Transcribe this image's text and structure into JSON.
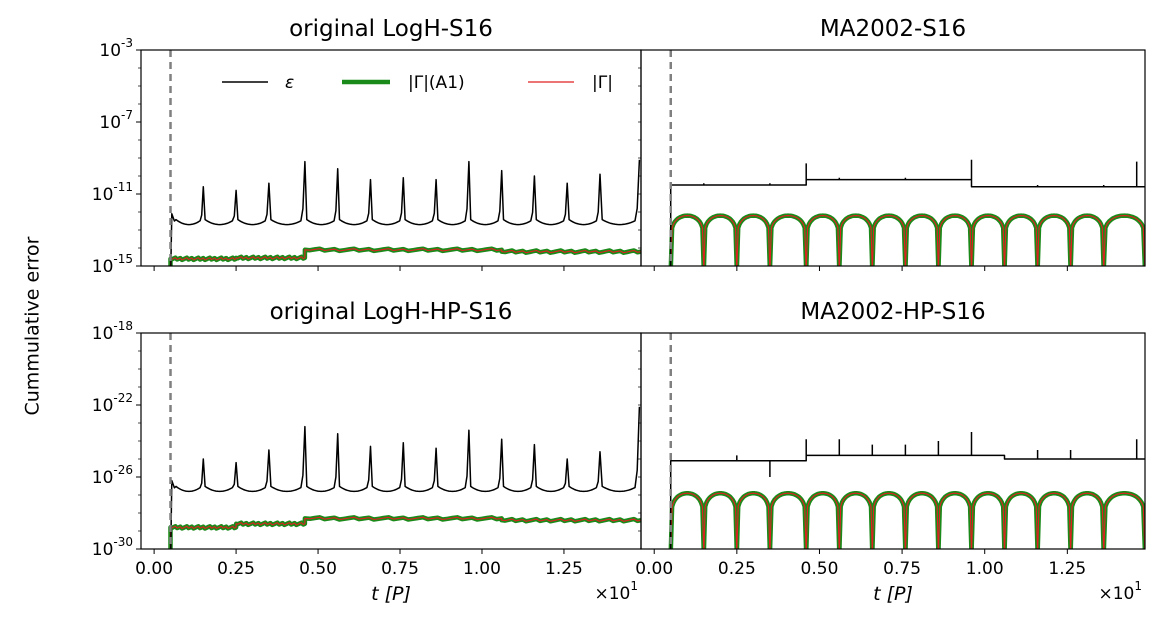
{
  "figure": {
    "ylabel": "Cummulative error",
    "legend": [
      {
        "label": "ε",
        "color": "#000000",
        "width": "thin"
      },
      {
        "label": "|Γ|(A1)",
        "color": "#1a8a1a",
        "width": "thick"
      },
      {
        "label": "|Γ|",
        "color": "#e02020",
        "width": "thin"
      }
    ],
    "legend_position": "top-left panel, upper area"
  },
  "chart_data": [
    {
      "type": "line",
      "title": "original LogH-S16",
      "position": "top-left",
      "xlabel": "",
      "ylabel": "Cummulative error",
      "xlim": [
        -0.04,
        1.485
      ],
      "ylim_log10": [
        -15,
        -3
      ],
      "yticks": [
        {
          "exp": -3,
          "label": "-3"
        },
        {
          "exp": -7,
          "label": "-7"
        },
        {
          "exp": -11,
          "label": "-11"
        },
        {
          "exp": -15,
          "label": "-15"
        }
      ],
      "xticks": [],
      "vline_x": 0.05,
      "series": [
        {
          "name": "ε",
          "style": "eps",
          "base": -12.7,
          "peak_times": [
            0.15,
            0.25,
            0.35,
            0.46,
            0.56,
            0.66,
            0.76,
            0.86,
            0.96,
            1.06,
            1.16,
            1.26,
            1.36,
            1.48
          ],
          "peak_values": [
            -10.6,
            -10.8,
            -10.4,
            -9.2,
            -9.6,
            -10.2,
            -10.1,
            -10.2,
            -9.2,
            -9.7,
            -10.0,
            -10.4,
            -9.9,
            -9.1
          ]
        },
        {
          "name": "|Γ|(A1)",
          "style": "flat",
          "segments": [
            [
              0.05,
              0.25,
              -14.6
            ],
            [
              0.25,
              0.46,
              -14.55
            ],
            [
              0.46,
              1.06,
              -14.1
            ],
            [
              1.06,
              1.485,
              -14.2
            ]
          ]
        },
        {
          "name": "|Γ|",
          "style": "flat",
          "segments": [
            [
              0.05,
              0.25,
              -14.6
            ],
            [
              0.25,
              0.46,
              -14.55
            ],
            [
              0.46,
              1.06,
              -14.1
            ],
            [
              1.06,
              1.485,
              -14.2
            ]
          ]
        }
      ]
    },
    {
      "type": "line",
      "title": "MA2002-S16",
      "position": "top-right",
      "xlabel": "",
      "xlim": [
        -0.04,
        1.485
      ],
      "ylim_log10": [
        -15,
        -3
      ],
      "yticks": [],
      "xticks": [],
      "vline_x": 0.05,
      "series": [
        {
          "name": "ε",
          "style": "step",
          "levels": [
            [
              0.05,
              0.46,
              -10.5
            ],
            [
              0.46,
              0.96,
              -10.2
            ],
            [
              0.96,
              1.485,
              -10.6
            ]
          ],
          "spike_times": [
            0.15,
            0.35,
            0.46,
            0.56,
            0.76,
            0.96,
            1.16,
            1.36,
            1.46
          ],
          "spike_values": [
            -10.4,
            -10.4,
            -9.3,
            -10.1,
            -10.1,
            -9.1,
            -10.5,
            -10.5,
            -9.2
          ]
        },
        {
          "name": "|Γ|(A1)",
          "style": "arches",
          "arch_times": [
            0.05,
            0.15,
            0.25,
            0.35,
            0.46,
            0.56,
            0.66,
            0.76,
            0.86,
            0.96,
            1.06,
            1.16,
            1.26,
            1.36,
            1.485
          ],
          "top": -12.2
        },
        {
          "name": "|Γ|",
          "style": "arches",
          "arch_times": [
            0.05,
            0.15,
            0.25,
            0.35,
            0.46,
            0.56,
            0.66,
            0.76,
            0.86,
            0.96,
            1.06,
            1.16,
            1.26,
            1.36,
            1.485
          ],
          "top": -12.2
        }
      ]
    },
    {
      "type": "line",
      "title": "original LogH-HP-S16",
      "position": "bottom-left",
      "xlabel": "t [P]",
      "xlim": [
        -0.04,
        1.485
      ],
      "ylim_log10": [
        -30,
        -18
      ],
      "yticks": [
        {
          "exp": -18,
          "label": "-18"
        },
        {
          "exp": -22,
          "label": "-22"
        },
        {
          "exp": -26,
          "label": "-26"
        },
        {
          "exp": -30,
          "label": "-30"
        }
      ],
      "xticks": [
        "0.00",
        "0.25",
        "0.50",
        "0.75",
        "1.00",
        "1.25"
      ],
      "xtick_values": [
        0.0,
        0.25,
        0.5,
        0.75,
        1.0,
        1.25
      ],
      "offset_text": "×10",
      "offset_exp": "1",
      "vline_x": 0.05,
      "series": [
        {
          "name": "ε",
          "style": "eps",
          "base": -26.8,
          "peak_times": [
            0.15,
            0.25,
            0.35,
            0.46,
            0.56,
            0.66,
            0.76,
            0.86,
            0.96,
            1.06,
            1.16,
            1.26,
            1.36,
            1.48
          ],
          "peak_values": [
            -25.0,
            -25.2,
            -24.5,
            -23.2,
            -23.6,
            -24.3,
            -24.1,
            -24.4,
            -23.4,
            -23.9,
            -24.2,
            -25.0,
            -24.6,
            -22.1
          ]
        },
        {
          "name": "|Γ|(A1)",
          "style": "flat",
          "segments": [
            [
              0.05,
              0.25,
              -28.8
            ],
            [
              0.25,
              0.46,
              -28.6
            ],
            [
              0.46,
              1.06,
              -28.3
            ],
            [
              1.06,
              1.485,
              -28.4
            ]
          ]
        },
        {
          "name": "|Γ|",
          "style": "flat",
          "segments": [
            [
              0.05,
              0.25,
              -28.8
            ],
            [
              0.25,
              0.46,
              -28.6
            ],
            [
              0.46,
              1.06,
              -28.3
            ],
            [
              1.06,
              1.485,
              -28.4
            ]
          ]
        }
      ]
    },
    {
      "type": "line",
      "title": "MA2002-HP-S16",
      "position": "bottom-right",
      "xlabel": "t [P]",
      "xlim": [
        -0.04,
        1.485
      ],
      "ylim_log10": [
        -30,
        -18
      ],
      "yticks": [],
      "xticks": [
        "0.00",
        "0.25",
        "0.50",
        "0.75",
        "1.00",
        "1.25"
      ],
      "xtick_values": [
        0.0,
        0.25,
        0.5,
        0.75,
        1.0,
        1.25
      ],
      "offset_text": "×10",
      "offset_exp": "1",
      "vline_x": 0.05,
      "series": [
        {
          "name": "ε",
          "style": "step",
          "levels": [
            [
              0.05,
              0.46,
              -25.1
            ],
            [
              0.46,
              1.06,
              -24.8
            ],
            [
              1.06,
              1.485,
              -25.0
            ]
          ],
          "spike_times": [
            0.25,
            0.35,
            0.46,
            0.56,
            0.66,
            0.76,
            0.86,
            0.96,
            1.16,
            1.26,
            1.46
          ],
          "spike_values": [
            -24.8,
            -26.0,
            -23.9,
            -23.9,
            -24.2,
            -24.2,
            -24.0,
            -23.5,
            -24.5,
            -24.5,
            -23.9
          ]
        },
        {
          "name": "|Γ|(A1)",
          "style": "arches",
          "arch_times": [
            0.05,
            0.15,
            0.25,
            0.35,
            0.46,
            0.56,
            0.66,
            0.76,
            0.86,
            0.96,
            1.06,
            1.16,
            1.26,
            1.36,
            1.485
          ],
          "top": -26.9
        },
        {
          "name": "|Γ|",
          "style": "arches",
          "arch_times": [
            0.05,
            0.15,
            0.25,
            0.35,
            0.46,
            0.56,
            0.66,
            0.76,
            0.86,
            0.96,
            1.06,
            1.16,
            1.26,
            1.36,
            1.485
          ],
          "top": -26.9
        }
      ]
    }
  ]
}
